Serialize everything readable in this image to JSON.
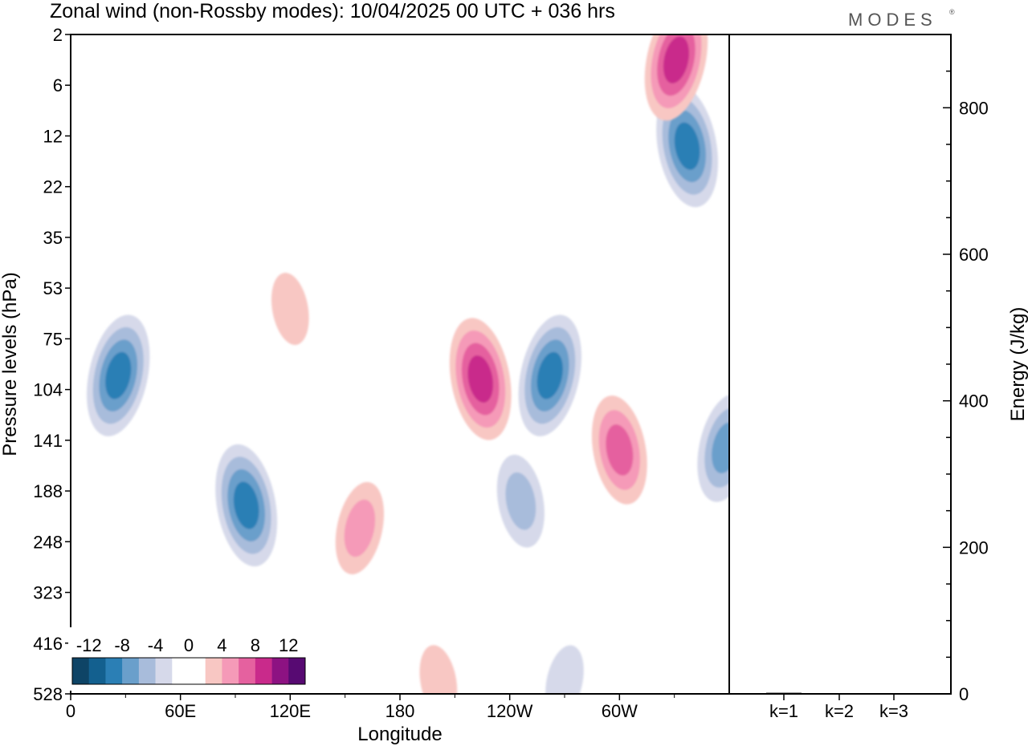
{
  "title": "Zonal wind (non-Rossby modes):  10/04/2025  00 UTC  + 036 hrs",
  "logo": "MODES",
  "logo_mark": "®",
  "chart_data": [
    {
      "type": "heatmap",
      "variable": "Zonal wind (non-Rossby modes)",
      "xlabel": "Longitude",
      "ylabel": "Pressure levels (hPa)",
      "x_ticks": [
        "0",
        "60E",
        "120E",
        "180",
        "120W",
        "60W"
      ],
      "x_tick_degrees": [
        0,
        60,
        120,
        180,
        240,
        300
      ],
      "x_range_degrees": [
        0,
        360
      ],
      "y_ticks": [
        "2",
        "6",
        "12",
        "22",
        "35",
        "53",
        "75",
        "104",
        "141",
        "188",
        "248",
        "323",
        "416",
        "528"
      ],
      "y_axis": "pressure levels, equally spaced model levels, top to bottom",
      "colorbar": {
        "tick_labels": [
          "-12",
          "-8",
          "-4",
          "0",
          "4",
          "8",
          "12"
        ],
        "levels": [
          -14,
          -12,
          -10,
          -8,
          -6,
          -4,
          -2,
          0,
          2,
          4,
          6,
          8,
          10,
          12,
          14
        ],
        "colors": [
          "#0e4466",
          "#13608f",
          "#2b7fb5",
          "#6a9fcb",
          "#a8bcdb",
          "#d6d9ea",
          "#ffffff",
          "#ffffff",
          "#f8c7c3",
          "#f59ab8",
          "#e5619f",
          "#c92a8b",
          "#8d1282",
          "#570a72"
        ]
      },
      "features": [
        {
          "lon": 96,
          "level": 205,
          "value": -9
        },
        {
          "lon": 26,
          "level": 96,
          "value": -9
        },
        {
          "lon": 246,
          "level": 200,
          "value": -5
        },
        {
          "lon": 262,
          "level": 96,
          "value": -8
        },
        {
          "lon": 337,
          "level": 14,
          "value": -8
        },
        {
          "lon": 358,
          "level": 148,
          "value": -7
        },
        {
          "lon": 224,
          "level": 98,
          "value": 9
        },
        {
          "lon": 158,
          "level": 232,
          "value": 5
        },
        {
          "lon": 300,
          "level": 150,
          "value": 7
        },
        {
          "lon": 331,
          "level": 4,
          "value": 8
        },
        {
          "lon": 201,
          "level": 500,
          "value": 3
        },
        {
          "lon": 270,
          "level": 500,
          "value": -3
        },
        {
          "lon": 120,
          "level": 62,
          "value": 3
        }
      ]
    },
    {
      "type": "bar",
      "categories": [
        "k=1",
        "k=2",
        "k=3"
      ],
      "values": [
        1.5,
        1.0,
        1.0
      ],
      "ylabel": "Energy (J/kg)",
      "ylim": [
        0,
        900
      ],
      "y_ticks": [
        0,
        200,
        400,
        600,
        800
      ]
    }
  ]
}
